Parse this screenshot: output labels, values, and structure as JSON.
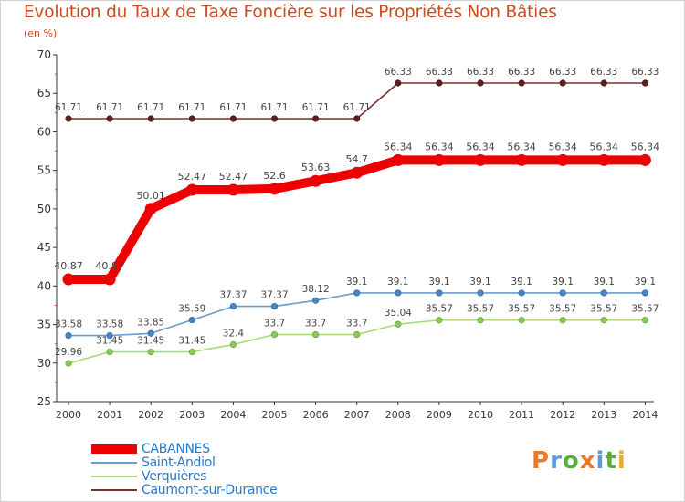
{
  "header": {
    "title": "Evolution du Taux de Taxe Foncière sur les Propriétés Non Bâties",
    "unit": "(en %)"
  },
  "logo": {
    "letters": [
      "P",
      "r",
      "o",
      "x",
      "i",
      "t",
      "i"
    ],
    "colors": [
      "#e8782a",
      "#5a9ad6",
      "#5aae3c",
      "#e8782a",
      "#5a9ad6",
      "#5aae3c",
      "#e8b02a"
    ]
  },
  "chart_data": {
    "type": "line",
    "title": "Evolution du Taux de Taxe Foncière sur les Propriétés Non Bâties",
    "ylabel": "(en %)",
    "xlabel": "",
    "categories": [
      "2000",
      "2001",
      "2002",
      "2003",
      "2004",
      "2005",
      "2006",
      "2007",
      "2008",
      "2009",
      "2010",
      "2011",
      "2012",
      "2013",
      "2014"
    ],
    "ylim": [
      25,
      70
    ],
    "yticks": [
      25,
      30,
      35,
      40,
      45,
      50,
      55,
      60,
      65,
      70
    ],
    "grid": false,
    "legend_position": "bottom-left",
    "series": [
      {
        "name": "CABANNES",
        "color": "#ee0000",
        "values": [
          40.87,
          40.87,
          50.01,
          52.47,
          52.47,
          52.6,
          53.63,
          54.7,
          56.34,
          56.34,
          56.34,
          56.34,
          56.34,
          56.34,
          56.34
        ],
        "labels": [
          "40.87",
          "40.87",
          "50.01",
          "52.47",
          "52.47",
          "52.6",
          "53.63",
          "54.7",
          "56.34",
          "56.34",
          "56.34",
          "56.34",
          "56.34",
          "56.34",
          "56.34"
        ]
      },
      {
        "name": "Saint-Andiol",
        "color": "#6a9ccc",
        "values": [
          33.58,
          33.58,
          33.85,
          35.59,
          37.37,
          37.37,
          38.12,
          39.1,
          39.1,
          39.1,
          39.1,
          39.1,
          39.1,
          39.1,
          39.1
        ],
        "labels": [
          "33.58",
          "33.58",
          "33.85",
          "35.59",
          "37.37",
          "37.37",
          "38.12",
          "39.1",
          "39.1",
          "39.1",
          "39.1",
          "39.1",
          "39.1",
          "39.1",
          "39.1"
        ]
      },
      {
        "name": "Verquières",
        "color": "#a8d878",
        "values": [
          29.96,
          31.45,
          31.45,
          31.45,
          32.4,
          33.7,
          33.7,
          33.7,
          35.04,
          35.57,
          35.57,
          35.57,
          35.57,
          35.57,
          35.57
        ],
        "labels": [
          "29.96",
          "31.45",
          "31.45",
          "31.45",
          "32.4",
          "33.7",
          "33.7",
          "33.7",
          "35.04",
          "35.57",
          "35.57",
          "35.57",
          "35.57",
          "35.57",
          "35.57"
        ]
      },
      {
        "name": "Caumont-sur-Durance",
        "color": "#7a3030",
        "values": [
          61.71,
          61.71,
          61.71,
          61.71,
          61.71,
          61.71,
          61.71,
          61.71,
          66.33,
          66.33,
          66.33,
          66.33,
          66.33,
          66.33,
          66.33
        ],
        "labels": [
          "61.71",
          "61.71",
          "61.71",
          "61.71",
          "61.71",
          "61.71",
          "61.71",
          "61.71",
          "66.33",
          "66.33",
          "66.33",
          "66.33",
          "66.33",
          "66.33",
          "66.33"
        ]
      }
    ]
  }
}
